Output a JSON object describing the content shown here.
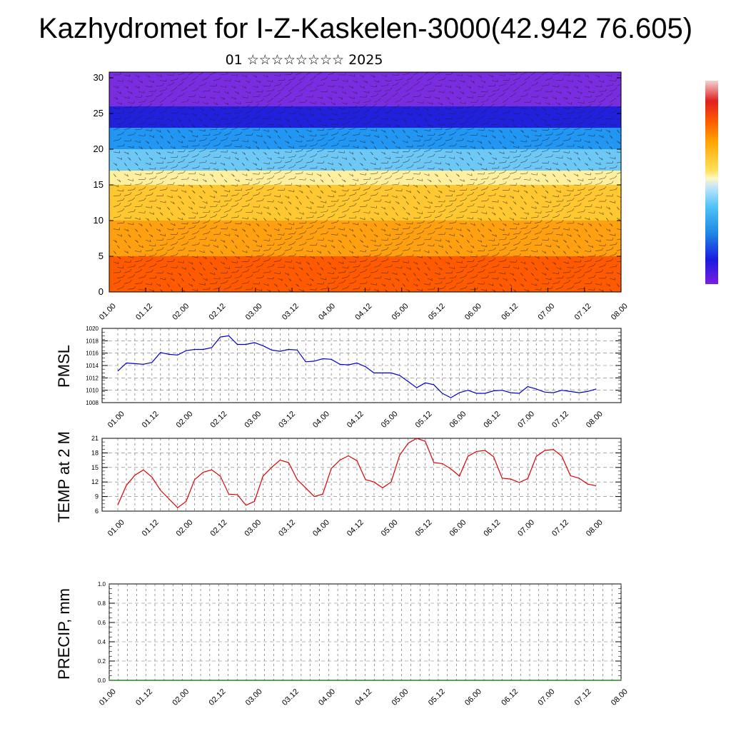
{
  "title": "Kazhydromet for I-Z-Kaskelen-3000(42.942 76.605)",
  "subtitle": "01 ☆☆☆☆☆☆☆☆ 2025",
  "colors": {
    "pmsl": "#0000cc",
    "temp": "#dd0000",
    "precip": "#006600"
  },
  "chart_data": [
    {
      "type": "heatmap",
      "title": "",
      "x_ticks": [
        "01.00",
        "01.12",
        "02.00",
        "02.12",
        "03.00",
        "03.12",
        "04.00",
        "04.12",
        "05.00",
        "05.12",
        "06.00",
        "06.12",
        "07.00",
        "07.12",
        "08.00"
      ],
      "y_ticks": [
        "0",
        "5",
        "10",
        "15",
        "20",
        "25",
        "30"
      ],
      "ylim": [
        0,
        30.8
      ],
      "xlim": [
        0,
        7
      ],
      "layers": [
        {
          "from": 0,
          "to": 5,
          "color": "#ff5a00"
        },
        {
          "from": 5,
          "to": 10,
          "color": "#ffa010"
        },
        {
          "from": 10,
          "to": 15,
          "color": "#ffc830"
        },
        {
          "from": 15,
          "to": 17,
          "color": "#fff0a0"
        },
        {
          "from": 17,
          "to": 20,
          "color": "#6ec8f5"
        },
        {
          "from": 20,
          "to": 23,
          "color": "#2196f3"
        },
        {
          "from": 23,
          "to": 26,
          "color": "#2020dd"
        },
        {
          "from": 26,
          "to": 30.8,
          "color": "#7a2de0"
        }
      ],
      "overlay": "wind barbs"
    },
    {
      "type": "line",
      "ylabel": "PMSL",
      "x_ticks": [
        "01.00",
        "01.12",
        "02.00",
        "02.12",
        "03.00",
        "03.12",
        "04.00",
        "04.12",
        "05.00",
        "05.12",
        "06.00",
        "06.12",
        "07.00",
        "07.12",
        "08.00"
      ],
      "y_ticks": [
        "1008",
        "1010",
        "1012",
        "1014",
        "1016",
        "1018",
        "1020"
      ],
      "ylim": [
        1008,
        1020
      ],
      "xlim": [
        0,
        7
      ],
      "x": [
        0,
        0.125,
        0.25,
        0.375,
        0.5,
        0.625,
        0.75,
        0.875,
        1,
        1.125,
        1.25,
        1.375,
        1.5,
        1.625,
        1.75,
        1.875,
        2,
        2.125,
        2.25,
        2.375,
        2.5,
        2.625,
        2.75,
        2.875,
        3,
        3.125,
        3.25,
        3.375,
        3.5,
        3.625,
        3.75,
        3.875,
        4,
        4.125,
        4.25,
        4.375,
        4.5,
        4.625,
        4.75,
        4.875,
        5,
        5.125,
        5.25,
        5.375,
        5.5,
        5.625,
        5.75,
        5.875,
        6,
        6.125,
        6.25,
        6.375,
        6.5,
        6.625,
        6.75,
        6.875,
        7
      ],
      "series": [
        {
          "values": [
            1013.1,
            1014.4,
            1014.3,
            1014.2,
            1014.5,
            1016.1,
            1015.8,
            1015.7,
            1016.4,
            1016.6,
            1016.6,
            1016.9,
            1018.6,
            1018.8,
            1017.4,
            1017.4,
            1017.7,
            1017.2,
            1016.5,
            1016.3,
            1016.6,
            1016.5,
            1014.6,
            1014.7,
            1015.1,
            1015.0,
            1014.2,
            1014.1,
            1014.4,
            1013.8,
            1012.8,
            1012.8,
            1012.8,
            1012.4,
            1011.4,
            1010.4,
            1011.2,
            1010.9,
            1009.5,
            1008.8,
            1009.6,
            1010.0,
            1009.5,
            1009.5,
            1009.9,
            1010.0,
            1009.6,
            1009.5,
            1010.6,
            1010.2,
            1009.7,
            1009.6,
            1010.0,
            1009.8,
            1009.6,
            1009.8,
            1010.2
          ]
        }
      ]
    },
    {
      "type": "line",
      "ylabel": "TEMP at 2 M",
      "x_ticks": [
        "01.00",
        "01.12",
        "02.00",
        "02.12",
        "03.00",
        "03.12",
        "04.00",
        "04.12",
        "05.00",
        "05.12",
        "06.00",
        "06.12",
        "07.00",
        "07.12",
        "08.00"
      ],
      "y_ticks": [
        "6",
        "9",
        "12",
        "15",
        "18",
        "21"
      ],
      "ylim": [
        6,
        21
      ],
      "xlim": [
        0,
        7
      ],
      "x": [
        0,
        0.125,
        0.25,
        0.375,
        0.5,
        0.625,
        0.75,
        0.875,
        1,
        1.125,
        1.25,
        1.375,
        1.5,
        1.625,
        1.75,
        1.875,
        2,
        2.125,
        2.25,
        2.375,
        2.5,
        2.625,
        2.75,
        2.875,
        3,
        3.125,
        3.25,
        3.375,
        3.5,
        3.625,
        3.75,
        3.875,
        4,
        4.125,
        4.25,
        4.375,
        4.5,
        4.625,
        4.75,
        4.875,
        5,
        5.125,
        5.25,
        5.375,
        5.5,
        5.625,
        5.75,
        5.875,
        6,
        6.125,
        6.25,
        6.375,
        6.5,
        6.625,
        6.75,
        6.875,
        7
      ],
      "series": [
        {
          "values": [
            7.3,
            11.3,
            13.4,
            14.5,
            13.0,
            10.3,
            8.5,
            6.7,
            8.0,
            12.5,
            14.0,
            14.5,
            13.2,
            9.5,
            9.4,
            7.2,
            8.0,
            13.2,
            15.0,
            16.5,
            16.0,
            12.5,
            10.8,
            9.0,
            9.5,
            14.8,
            16.5,
            17.4,
            16.4,
            12.5,
            12.0,
            10.8,
            12.0,
            17.5,
            20.0,
            21.0,
            20.4,
            16.0,
            15.8,
            14.7,
            13.2,
            17.3,
            18.3,
            18.5,
            17.2,
            12.8,
            12.6,
            11.9,
            12.7,
            17.3,
            18.5,
            18.7,
            17.3,
            13.3,
            12.8,
            11.6,
            11.2
          ]
        }
      ]
    },
    {
      "type": "line",
      "ylabel": "PRECIP, mm",
      "x_ticks": [
        "01.00",
        "01.12",
        "02.00",
        "02.12",
        "03.00",
        "03.12",
        "04.00",
        "04.12",
        "05.00",
        "05.12",
        "06.00",
        "06.12",
        "07.00",
        "07.12",
        "08.00"
      ],
      "y_ticks": [
        "0.0",
        "0.2",
        "0.4",
        "0.6",
        "0.8",
        "1.0"
      ],
      "ylim": [
        0,
        1
      ],
      "xlim": [
        0,
        7
      ],
      "x": [
        0,
        7
      ],
      "series": [
        {
          "values": [
            0,
            0
          ]
        }
      ]
    }
  ]
}
